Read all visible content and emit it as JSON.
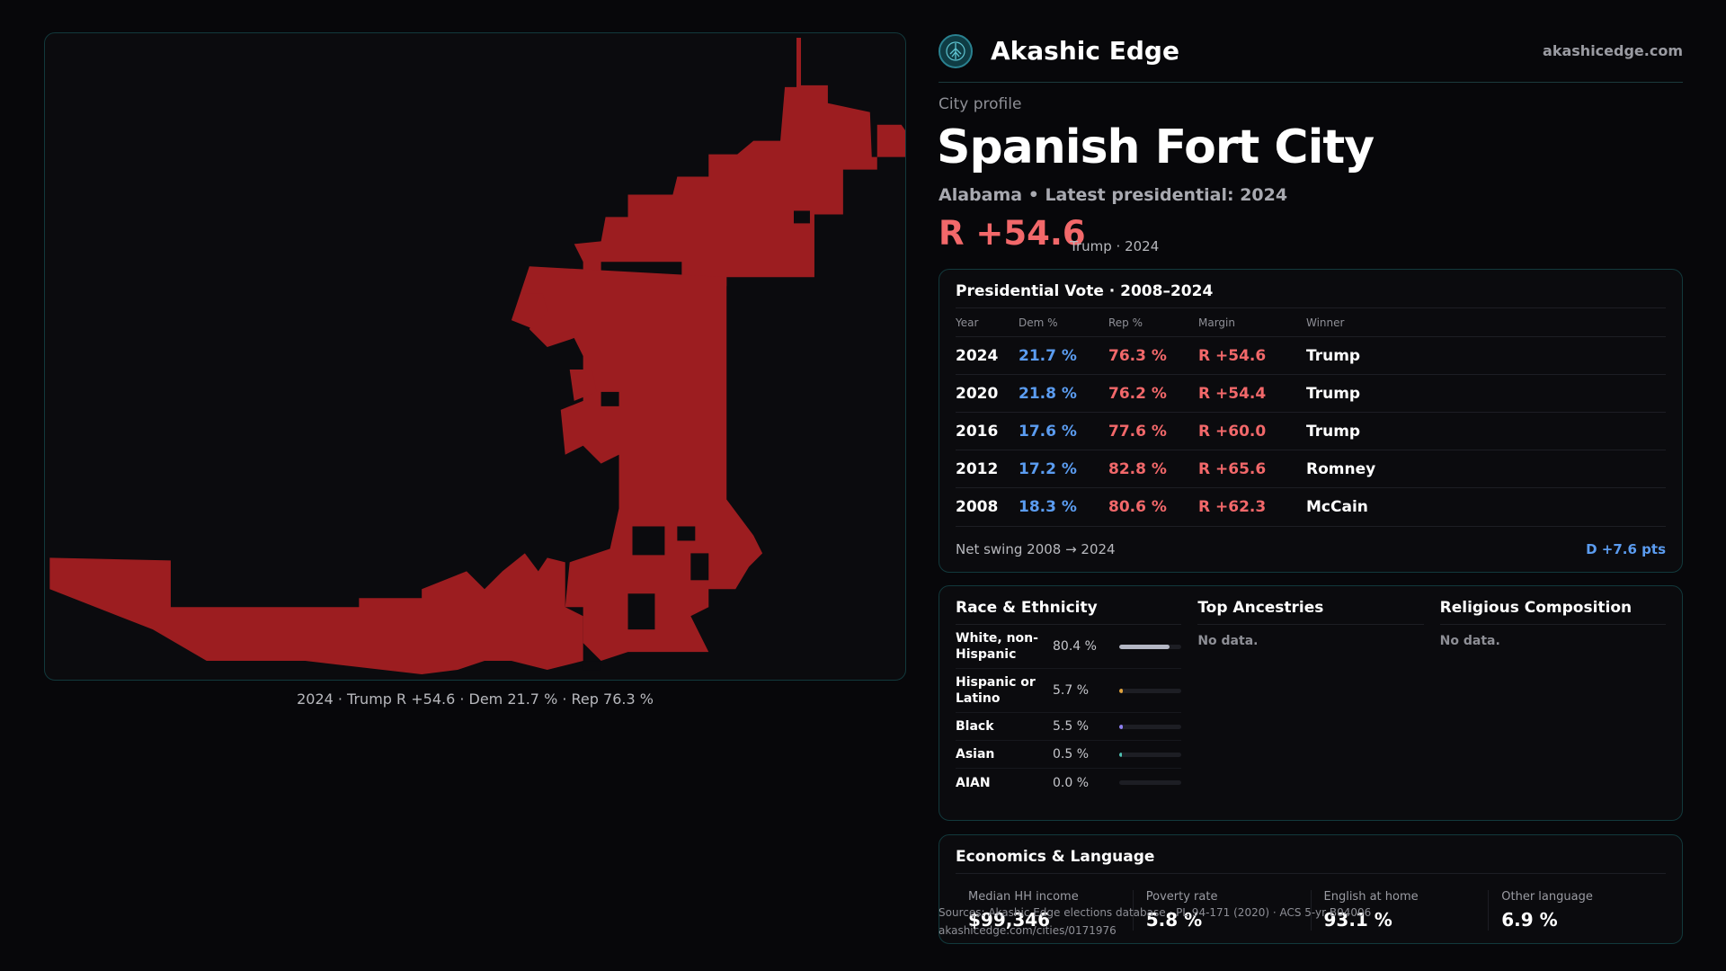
{
  "brand": {
    "name": "Akashic Edge",
    "url": "akashicedge.com",
    "logo_icon": "tree-globe-icon",
    "accent": "#2a8190"
  },
  "profile": {
    "eyebrow": "City profile",
    "title": "Spanish Fort City",
    "subtitle": "Alabama • Latest presidential: 2024",
    "headline_margin": "R +54.6",
    "headline_sub": "Trump · 2024"
  },
  "map": {
    "caption": "2024 · Trump  R +54.6 · Dem 21.7 % · Rep 76.3 %",
    "fill_color": "#9c1d20"
  },
  "presidential": {
    "title": "Presidential Vote · 2008–2024",
    "headers": {
      "year": "Year",
      "dem": "Dem %",
      "rep": "Rep %",
      "margin": "Margin",
      "winner": "Winner"
    },
    "rows": [
      {
        "year": "2024",
        "dem": "21.7 %",
        "rep": "76.3 %",
        "margin": "R +54.6",
        "winner": "Trump"
      },
      {
        "year": "2020",
        "dem": "21.8 %",
        "rep": "76.2 %",
        "margin": "R +54.4",
        "winner": "Trump"
      },
      {
        "year": "2016",
        "dem": "17.6 %",
        "rep": "77.6 %",
        "margin": "R +60.0",
        "winner": "Trump"
      },
      {
        "year": "2012",
        "dem": "17.2 %",
        "rep": "82.8 %",
        "margin": "R +65.6",
        "winner": "Romney"
      },
      {
        "year": "2008",
        "dem": "18.3 %",
        "rep": "80.6 %",
        "margin": "R +62.3",
        "winner": "McCain"
      }
    ],
    "swing_label": "Net swing 2008 → 2024",
    "swing_value": "D +7.6 pts"
  },
  "race": {
    "title": "Race & Ethnicity",
    "rows": [
      {
        "label": "White, non-Hispanic",
        "pct": "80.4 %",
        "value": 80.4,
        "color": "#b4b7c4"
      },
      {
        "label": "Hispanic or Latino",
        "pct": "5.7 %",
        "value": 5.7,
        "color": "#e0a23c"
      },
      {
        "label": "Black",
        "pct": "5.5 %",
        "value": 5.5,
        "color": "#8d7ff0"
      },
      {
        "label": "Asian",
        "pct": "0.5 %",
        "value": 0.5,
        "color": "#4fc3b3"
      },
      {
        "label": "AIAN",
        "pct": "0.0 %",
        "value": 0.0,
        "color": "#c0c0c0"
      }
    ]
  },
  "ancestries": {
    "title": "Top Ancestries",
    "empty": "No data."
  },
  "religion": {
    "title": "Religious Composition",
    "empty": "No data."
  },
  "economics": {
    "title": "Economics & Language",
    "cells": [
      {
        "label": "Median HH income",
        "value": "$99,346"
      },
      {
        "label": "Poverty rate",
        "value": "5.8 %"
      },
      {
        "label": "English at home",
        "value": "93.1 %"
      },
      {
        "label": "Other language",
        "value": "6.9 %"
      }
    ]
  },
  "source": {
    "line1": "Sources: Akashic Edge elections database · PL 94-171 (2020) · ACS 5-yr B04006",
    "line2": "akashicedge.com/cities/0171976"
  }
}
